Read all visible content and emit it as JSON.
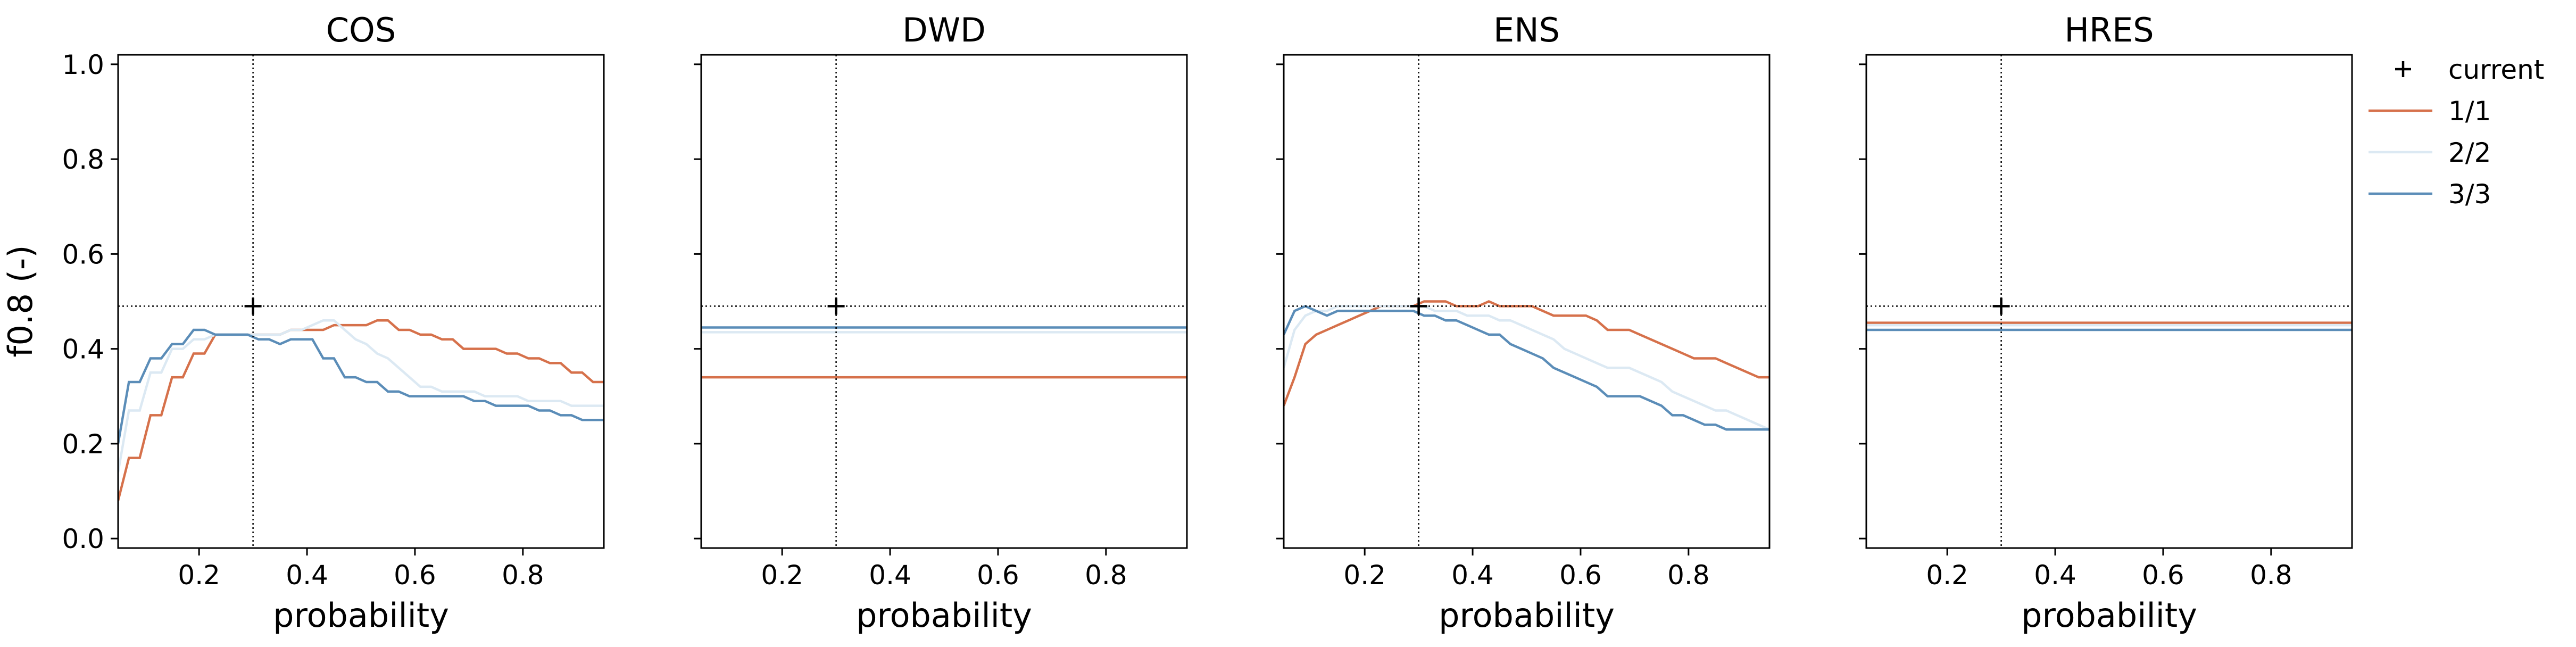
{
  "figure": {
    "ylabel": "f0.8 (-)",
    "legend": {
      "placement": "right",
      "current_label": "current",
      "current_marker": "+",
      "entries": [
        {
          "label": "1/1",
          "color": "#d6714b"
        },
        {
          "label": "2/2",
          "color": "#dce9f3"
        },
        {
          "label": "3/3",
          "color": "#5b8db8"
        }
      ]
    }
  },
  "chart_data": [
    {
      "type": "line",
      "title": "COS",
      "xlabel": "probability",
      "ylabel": "f0.8 (-)",
      "xlim": [
        0.05,
        0.95
      ],
      "ylim": [
        -0.02,
        1.02
      ],
      "xticks": [
        0.2,
        0.4,
        0.6,
        0.8
      ],
      "yticks": [
        0.0,
        0.2,
        0.4,
        0.6,
        0.8,
        1.0
      ],
      "ytick_labels": [
        "0.0",
        "0.2",
        "0.4",
        "0.6",
        "0.8",
        "1.0"
      ],
      "current": {
        "x": 0.3,
        "y": 0.49
      },
      "series": [
        {
          "name": "1/1",
          "color": "#d6714b",
          "x": [
            0.05,
            0.07,
            0.09,
            0.11,
            0.13,
            0.15,
            0.17,
            0.19,
            0.21,
            0.23,
            0.25,
            0.27,
            0.29,
            0.31,
            0.33,
            0.35,
            0.37,
            0.39,
            0.41,
            0.43,
            0.45,
            0.47,
            0.49,
            0.51,
            0.53,
            0.55,
            0.57,
            0.59,
            0.61,
            0.63,
            0.65,
            0.67,
            0.69,
            0.71,
            0.73,
            0.75,
            0.77,
            0.79,
            0.81,
            0.83,
            0.85,
            0.87,
            0.89,
            0.91,
            0.93,
            0.95
          ],
          "y": [
            0.08,
            0.17,
            0.17,
            0.26,
            0.26,
            0.34,
            0.34,
            0.39,
            0.39,
            0.43,
            0.43,
            0.43,
            0.43,
            0.43,
            0.43,
            0.43,
            0.44,
            0.44,
            0.44,
            0.44,
            0.45,
            0.45,
            0.45,
            0.45,
            0.46,
            0.46,
            0.44,
            0.44,
            0.43,
            0.43,
            0.42,
            0.42,
            0.4,
            0.4,
            0.4,
            0.4,
            0.39,
            0.39,
            0.38,
            0.38,
            0.37,
            0.37,
            0.35,
            0.35,
            0.33,
            0.33
          ]
        },
        {
          "name": "2/2",
          "color": "#dce9f3",
          "x": [
            0.05,
            0.07,
            0.09,
            0.11,
            0.13,
            0.15,
            0.17,
            0.19,
            0.21,
            0.23,
            0.25,
            0.27,
            0.29,
            0.31,
            0.33,
            0.35,
            0.37,
            0.39,
            0.41,
            0.43,
            0.45,
            0.47,
            0.49,
            0.51,
            0.53,
            0.55,
            0.57,
            0.59,
            0.61,
            0.63,
            0.65,
            0.67,
            0.69,
            0.71,
            0.73,
            0.75,
            0.77,
            0.79,
            0.81,
            0.83,
            0.85,
            0.87,
            0.89,
            0.91,
            0.93,
            0.95
          ],
          "y": [
            0.14,
            0.27,
            0.27,
            0.35,
            0.35,
            0.4,
            0.4,
            0.42,
            0.42,
            0.43,
            0.43,
            0.43,
            0.43,
            0.43,
            0.43,
            0.43,
            0.44,
            0.44,
            0.45,
            0.46,
            0.46,
            0.44,
            0.42,
            0.41,
            0.39,
            0.38,
            0.36,
            0.34,
            0.32,
            0.32,
            0.31,
            0.31,
            0.31,
            0.31,
            0.3,
            0.3,
            0.3,
            0.3,
            0.29,
            0.29,
            0.29,
            0.29,
            0.28,
            0.28,
            0.28,
            0.28
          ]
        },
        {
          "name": "3/3",
          "color": "#5b8db8",
          "x": [
            0.05,
            0.07,
            0.09,
            0.11,
            0.13,
            0.15,
            0.17,
            0.19,
            0.21,
            0.23,
            0.25,
            0.27,
            0.29,
            0.31,
            0.33,
            0.35,
            0.37,
            0.39,
            0.41,
            0.43,
            0.45,
            0.47,
            0.49,
            0.51,
            0.53,
            0.55,
            0.57,
            0.59,
            0.61,
            0.63,
            0.65,
            0.67,
            0.69,
            0.71,
            0.73,
            0.75,
            0.77,
            0.79,
            0.81,
            0.83,
            0.85,
            0.87,
            0.89,
            0.91,
            0.93,
            0.95
          ],
          "y": [
            0.2,
            0.33,
            0.33,
            0.38,
            0.38,
            0.41,
            0.41,
            0.44,
            0.44,
            0.43,
            0.43,
            0.43,
            0.43,
            0.42,
            0.42,
            0.41,
            0.42,
            0.42,
            0.42,
            0.38,
            0.38,
            0.34,
            0.34,
            0.33,
            0.33,
            0.31,
            0.31,
            0.3,
            0.3,
            0.3,
            0.3,
            0.3,
            0.3,
            0.29,
            0.29,
            0.28,
            0.28,
            0.28,
            0.28,
            0.27,
            0.27,
            0.26,
            0.26,
            0.25,
            0.25,
            0.25
          ]
        }
      ]
    },
    {
      "type": "line",
      "title": "DWD",
      "xlabel": "probability",
      "xlim": [
        0.05,
        0.95
      ],
      "ylim": [
        -0.02,
        1.02
      ],
      "xticks": [
        0.2,
        0.4,
        0.6,
        0.8
      ],
      "yticks": [
        0.0,
        0.2,
        0.4,
        0.6,
        0.8,
        1.0
      ],
      "current": {
        "x": 0.3,
        "y": 0.49
      },
      "series": [
        {
          "name": "1/1",
          "color": "#d6714b",
          "x": [
            0.05,
            0.95
          ],
          "y": [
            0.34,
            0.34
          ]
        },
        {
          "name": "2/2",
          "color": "#dce9f3",
          "x": [
            0.05,
            0.95
          ],
          "y": [
            0.435,
            0.435
          ]
        },
        {
          "name": "3/3",
          "color": "#5b8db8",
          "x": [
            0.05,
            0.95
          ],
          "y": [
            0.445,
            0.445
          ]
        }
      ]
    },
    {
      "type": "line",
      "title": "ENS",
      "xlabel": "probability",
      "xlim": [
        0.05,
        0.95
      ],
      "ylim": [
        -0.02,
        1.02
      ],
      "xticks": [
        0.2,
        0.4,
        0.6,
        0.8
      ],
      "yticks": [
        0.0,
        0.2,
        0.4,
        0.6,
        0.8,
        1.0
      ],
      "current": {
        "x": 0.3,
        "y": 0.49
      },
      "series": [
        {
          "name": "1/1",
          "color": "#d6714b",
          "x": [
            0.05,
            0.07,
            0.09,
            0.11,
            0.13,
            0.15,
            0.17,
            0.19,
            0.21,
            0.23,
            0.25,
            0.27,
            0.29,
            0.31,
            0.33,
            0.35,
            0.37,
            0.39,
            0.41,
            0.43,
            0.45,
            0.47,
            0.49,
            0.51,
            0.53,
            0.55,
            0.57,
            0.59,
            0.61,
            0.63,
            0.65,
            0.67,
            0.69,
            0.71,
            0.73,
            0.75,
            0.77,
            0.79,
            0.81,
            0.83,
            0.85,
            0.87,
            0.89,
            0.91,
            0.93,
            0.95
          ],
          "y": [
            0.28,
            0.34,
            0.41,
            0.43,
            0.44,
            0.45,
            0.46,
            0.47,
            0.48,
            0.49,
            0.49,
            0.49,
            0.49,
            0.5,
            0.5,
            0.5,
            0.49,
            0.49,
            0.49,
            0.5,
            0.49,
            0.49,
            0.49,
            0.49,
            0.48,
            0.47,
            0.47,
            0.47,
            0.47,
            0.46,
            0.44,
            0.44,
            0.44,
            0.43,
            0.42,
            0.41,
            0.4,
            0.39,
            0.38,
            0.38,
            0.38,
            0.37,
            0.36,
            0.35,
            0.34,
            0.34
          ]
        },
        {
          "name": "2/2",
          "color": "#dce9f3",
          "x": [
            0.05,
            0.07,
            0.09,
            0.11,
            0.13,
            0.15,
            0.17,
            0.19,
            0.21,
            0.23,
            0.25,
            0.27,
            0.29,
            0.31,
            0.33,
            0.35,
            0.37,
            0.39,
            0.41,
            0.43,
            0.45,
            0.47,
            0.49,
            0.51,
            0.53,
            0.55,
            0.57,
            0.59,
            0.61,
            0.63,
            0.65,
            0.67,
            0.69,
            0.71,
            0.73,
            0.75,
            0.77,
            0.79,
            0.81,
            0.83,
            0.85,
            0.87,
            0.89,
            0.91,
            0.93,
            0.95
          ],
          "y": [
            0.36,
            0.44,
            0.47,
            0.48,
            0.48,
            0.49,
            0.49,
            0.49,
            0.49,
            0.49,
            0.49,
            0.49,
            0.49,
            0.49,
            0.48,
            0.48,
            0.48,
            0.47,
            0.47,
            0.47,
            0.46,
            0.46,
            0.45,
            0.44,
            0.43,
            0.42,
            0.4,
            0.39,
            0.38,
            0.37,
            0.36,
            0.36,
            0.36,
            0.35,
            0.34,
            0.33,
            0.31,
            0.3,
            0.29,
            0.28,
            0.27,
            0.27,
            0.26,
            0.25,
            0.24,
            0.23
          ]
        },
        {
          "name": "3/3",
          "color": "#5b8db8",
          "x": [
            0.05,
            0.07,
            0.09,
            0.11,
            0.13,
            0.15,
            0.17,
            0.19,
            0.21,
            0.23,
            0.25,
            0.27,
            0.29,
            0.31,
            0.33,
            0.35,
            0.37,
            0.39,
            0.41,
            0.43,
            0.45,
            0.47,
            0.49,
            0.51,
            0.53,
            0.55,
            0.57,
            0.59,
            0.61,
            0.63,
            0.65,
            0.67,
            0.69,
            0.71,
            0.73,
            0.75,
            0.77,
            0.79,
            0.81,
            0.83,
            0.85,
            0.87,
            0.89,
            0.91,
            0.93,
            0.95
          ],
          "y": [
            0.43,
            0.48,
            0.49,
            0.48,
            0.47,
            0.48,
            0.48,
            0.48,
            0.48,
            0.48,
            0.48,
            0.48,
            0.48,
            0.47,
            0.47,
            0.46,
            0.46,
            0.45,
            0.44,
            0.43,
            0.43,
            0.41,
            0.4,
            0.39,
            0.38,
            0.36,
            0.35,
            0.34,
            0.33,
            0.32,
            0.3,
            0.3,
            0.3,
            0.3,
            0.29,
            0.28,
            0.26,
            0.26,
            0.25,
            0.24,
            0.24,
            0.23,
            0.23,
            0.23,
            0.23,
            0.23
          ]
        }
      ]
    },
    {
      "type": "line",
      "title": "HRES",
      "xlabel": "probability",
      "xlim": [
        0.05,
        0.95
      ],
      "ylim": [
        -0.02,
        1.02
      ],
      "xticks": [
        0.2,
        0.4,
        0.6,
        0.8
      ],
      "yticks": [
        0.0,
        0.2,
        0.4,
        0.6,
        0.8,
        1.0
      ],
      "current": {
        "x": 0.3,
        "y": 0.49
      },
      "series": [
        {
          "name": "1/1",
          "color": "#d6714b",
          "x": [
            0.05,
            0.95
          ],
          "y": [
            0.455,
            0.455
          ]
        },
        {
          "name": "2/2",
          "color": "#dce9f3",
          "x": [
            0.05,
            0.95
          ],
          "y": [
            0.45,
            0.45
          ]
        },
        {
          "name": "3/3",
          "color": "#5b8db8",
          "x": [
            0.05,
            0.95
          ],
          "y": [
            0.44,
            0.44
          ]
        }
      ]
    }
  ]
}
